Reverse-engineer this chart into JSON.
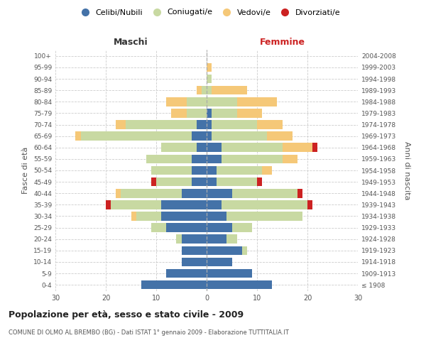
{
  "age_groups": [
    "100+",
    "95-99",
    "90-94",
    "85-89",
    "80-84",
    "75-79",
    "70-74",
    "65-69",
    "60-64",
    "55-59",
    "50-54",
    "45-49",
    "40-44",
    "35-39",
    "30-34",
    "25-29",
    "20-24",
    "15-19",
    "10-14",
    "5-9",
    "0-4"
  ],
  "birth_years": [
    "≤ 1908",
    "1909-1913",
    "1914-1918",
    "1919-1923",
    "1924-1928",
    "1929-1933",
    "1934-1938",
    "1939-1943",
    "1944-1948",
    "1949-1953",
    "1954-1958",
    "1959-1963",
    "1964-1968",
    "1969-1973",
    "1974-1978",
    "1979-1983",
    "1984-1988",
    "1989-1993",
    "1994-1998",
    "1999-2003",
    "2004-2008"
  ],
  "colors": {
    "celibi": "#4472a8",
    "coniugati": "#c8d9a2",
    "vedovi": "#f5c878",
    "divorziati": "#cc2222"
  },
  "maschi": {
    "celibi": [
      0,
      0,
      0,
      0,
      0,
      0,
      2,
      3,
      2,
      3,
      3,
      3,
      5,
      9,
      9,
      8,
      5,
      5,
      5,
      8,
      13
    ],
    "coniugati": [
      0,
      0,
      0,
      1,
      4,
      4,
      14,
      22,
      7,
      9,
      8,
      7,
      12,
      10,
      5,
      3,
      1,
      0,
      0,
      0,
      0
    ],
    "vedovi": [
      0,
      0,
      0,
      1,
      4,
      3,
      2,
      1,
      0,
      0,
      0,
      0,
      1,
      0,
      1,
      0,
      0,
      0,
      0,
      0,
      0
    ],
    "divorziati": [
      0,
      0,
      0,
      0,
      0,
      0,
      0,
      0,
      0,
      0,
      0,
      1,
      0,
      1,
      0,
      0,
      0,
      0,
      0,
      0,
      0
    ]
  },
  "femmine": {
    "celibi": [
      0,
      0,
      0,
      0,
      0,
      1,
      1,
      1,
      3,
      3,
      2,
      2,
      5,
      3,
      4,
      5,
      4,
      7,
      5,
      9,
      13
    ],
    "coniugati": [
      0,
      0,
      1,
      1,
      6,
      5,
      9,
      11,
      12,
      12,
      9,
      8,
      13,
      17,
      15,
      4,
      2,
      1,
      0,
      0,
      0
    ],
    "vedovi": [
      0,
      1,
      0,
      7,
      8,
      5,
      5,
      5,
      6,
      3,
      2,
      0,
      0,
      0,
      0,
      0,
      0,
      0,
      0,
      0,
      0
    ],
    "divorziati": [
      0,
      0,
      0,
      0,
      0,
      0,
      0,
      0,
      1,
      0,
      0,
      1,
      1,
      1,
      0,
      0,
      0,
      0,
      0,
      0,
      0
    ]
  },
  "title": "Popolazione per età, sesso e stato civile - 2009",
  "subtitle": "COMUNE DI OLMO AL BREMBO (BG) - Dati ISTAT 1° gennaio 2009 - Elaborazione TUTTITALIA.IT",
  "xlabel_left": "Maschi",
  "xlabel_right": "Femmine",
  "ylabel_left": "Fasce di età",
  "ylabel_right": "Anni di nascita",
  "xlim": 30,
  "background_color": "#ffffff",
  "grid_color": "#cccccc",
  "legend_labels": [
    "Celibi/Nubili",
    "Coniugati/e",
    "Vedovi/e",
    "Divorziati/e"
  ]
}
